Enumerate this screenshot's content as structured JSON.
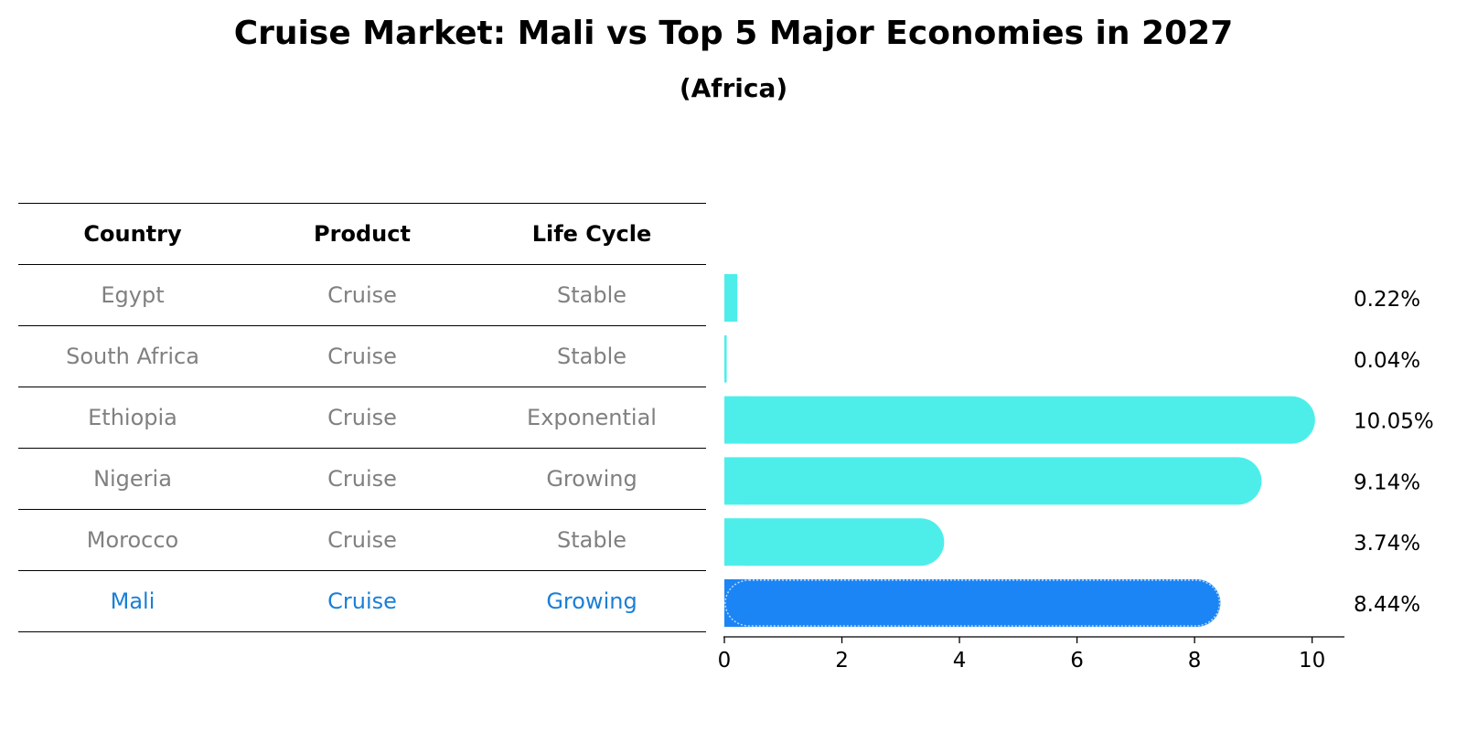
{
  "title": "Cruise Market: Mali vs Top 5 Major Economies in 2027",
  "subtitle": "(Africa)",
  "table": {
    "headers": [
      "Country",
      "Product",
      "Life Cycle"
    ],
    "rows": [
      [
        "Egypt",
        "Cruise",
        "Stable"
      ],
      [
        "South Africa",
        "Cruise",
        "Stable"
      ],
      [
        "Ethiopia",
        "Cruise",
        "Exponential"
      ],
      [
        "Nigeria",
        "Cruise",
        "Growing"
      ],
      [
        "Morocco",
        "Cruise",
        "Stable"
      ],
      [
        "Mali",
        "Cruise",
        "Growing"
      ]
    ],
    "highlight_row": 5
  },
  "chart_data": {
    "type": "bar",
    "orientation": "horizontal",
    "categories": [
      "Egypt",
      "South Africa",
      "Ethiopia",
      "Nigeria",
      "Morocco",
      "Mali"
    ],
    "values": [
      0.22,
      0.04,
      10.05,
      9.14,
      3.74,
      8.44
    ],
    "value_labels": [
      "0.22%",
      "0.04%",
      "10.05%",
      "9.14%",
      "3.74%",
      "8.44%"
    ],
    "xlim": [
      0,
      10.55
    ],
    "xticks": [
      0,
      2,
      4,
      6,
      8,
      10
    ],
    "grid": false,
    "colors": {
      "default": "#4deeea",
      "highlight": "#1b85f5"
    },
    "highlight": "Mali"
  }
}
